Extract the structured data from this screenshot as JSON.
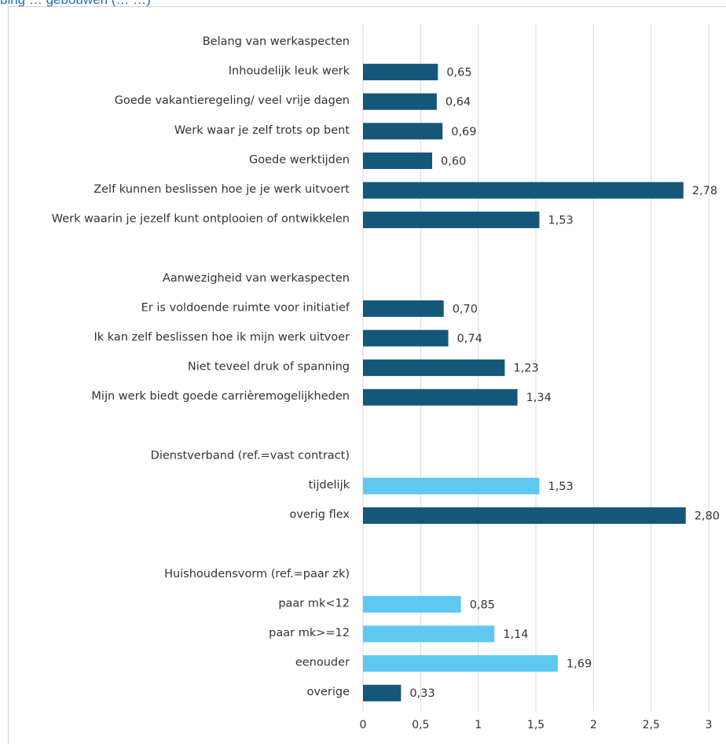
{
  "page_title": "bing … gebouwen (… …)",
  "colors": {
    "dark_bar": "#145778",
    "light_bar": "#5dc8f0",
    "gridline": "#d9d9d9",
    "title": "#1f6fc2",
    "text": "#333333"
  },
  "chart_data": {
    "type": "bar",
    "orientation": "horizontal",
    "title": "",
    "xlabel": "",
    "ylabel": "",
    "xlim": [
      0,
      3
    ],
    "x_ticks": [
      "0",
      "0,5",
      "1",
      "1,5",
      "2",
      "2,5",
      "3"
    ],
    "grid": "vertical",
    "legend": "none",
    "rows": [
      {
        "label": "Belang van werkaspecten",
        "header": true
      },
      {
        "label": "Inhoudelijk leuk werk",
        "value": 0.65,
        "value_label": "0,65",
        "style": "dark"
      },
      {
        "label": "Goede vakantieregeling/ veel vrije dagen",
        "value": 0.64,
        "value_label": "0,64",
        "style": "dark"
      },
      {
        "label": "Werk waar je zelf trots op bent",
        "value": 0.69,
        "value_label": "0,69",
        "style": "dark"
      },
      {
        "label": "Goede werktijden",
        "value": 0.6,
        "value_label": "0,60",
        "style": "dark"
      },
      {
        "label": "Zelf kunnen beslissen hoe je je werk uitvoert",
        "value": 2.78,
        "value_label": "2,78",
        "style": "dark"
      },
      {
        "label": "Werk waarin je jezelf kunt ontplooien of ontwikkelen",
        "value": 1.53,
        "value_label": "1,53",
        "style": "dark"
      },
      {
        "label": "",
        "spacer": true
      },
      {
        "label": "Aanwezigheid van werkaspecten",
        "header": true
      },
      {
        "label": "Er is voldoende ruimte voor initiatief",
        "value": 0.7,
        "value_label": "0,70",
        "style": "dark"
      },
      {
        "label": "Ik kan zelf beslissen hoe ik mijn werk uitvoer",
        "value": 0.74,
        "value_label": "0,74",
        "style": "dark"
      },
      {
        "label": "Niet teveel druk of spanning",
        "value": 1.23,
        "value_label": "1,23",
        "style": "dark"
      },
      {
        "label": "Mijn werk biedt goede carrièremogelijkheden",
        "value": 1.34,
        "value_label": "1,34",
        "style": "dark"
      },
      {
        "label": "",
        "spacer": true
      },
      {
        "label": "Dienstverband (ref.=vast contract)",
        "header": true
      },
      {
        "label": "tijdelijk",
        "value": 1.53,
        "value_label": "1,53",
        "style": "light"
      },
      {
        "label": "overig flex",
        "value": 2.8,
        "value_label": "2,80",
        "style": "dark"
      },
      {
        "label": "",
        "spacer": true
      },
      {
        "label": "Huishoudensvorm (ref.=paar zk)",
        "header": true
      },
      {
        "label": "paar mk<12",
        "value": 0.85,
        "value_label": "0,85",
        "style": "light"
      },
      {
        "label": "paar mk>=12",
        "value": 1.14,
        "value_label": "1,14",
        "style": "light"
      },
      {
        "label": "eenouder",
        "value": 1.69,
        "value_label": "1,69",
        "style": "light"
      },
      {
        "label": "overige",
        "value": 0.33,
        "value_label": "0,33",
        "style": "dark"
      }
    ]
  }
}
